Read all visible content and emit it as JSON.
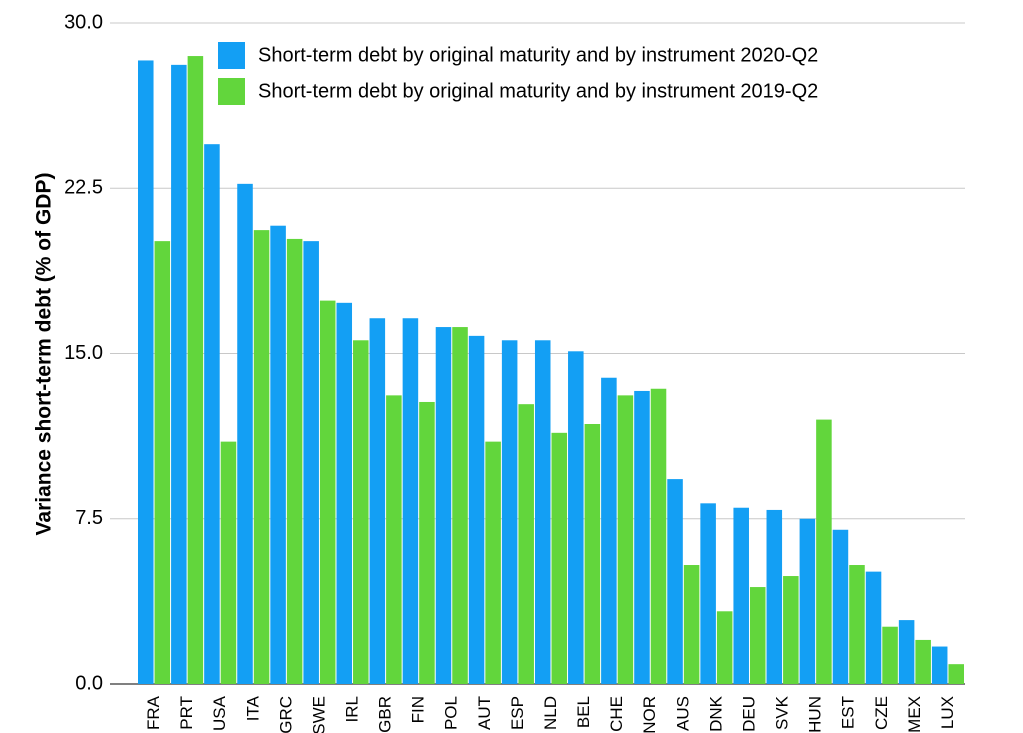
{
  "chart_data": {
    "type": "bar",
    "y_label": "Variance short-term debt (% of GDP)",
    "categories": [
      "FRA",
      "PRT",
      "USA",
      "ITA",
      "GRC",
      "SWE",
      "IRL",
      "GBR",
      "FIN",
      "POL",
      "AUT",
      "ESP",
      "NLD",
      "BEL",
      "CHE",
      "NOR",
      "AUS",
      "DNK",
      "DEU",
      "SVK",
      "HUN",
      "EST",
      "CZE",
      "MEX",
      "LUX"
    ],
    "series": [
      {
        "name": "Short-term debt by original maturity and by instrument 2020-Q2",
        "color": "#139ff4",
        "values": [
          28.3,
          28.1,
          24.5,
          22.7,
          20.8,
          20.1,
          17.3,
          16.6,
          16.6,
          16.2,
          15.8,
          15.6,
          15.6,
          15.1,
          13.9,
          13.3,
          9.3,
          8.2,
          8.0,
          7.9,
          7.5,
          7.0,
          5.1,
          2.9,
          1.7
        ]
      },
      {
        "name": "Short-term debt by original maturity and by instrument 2019-Q2",
        "color": "#62d63c",
        "values": [
          20.1,
          28.5,
          11.0,
          20.6,
          20.2,
          17.4,
          15.6,
          13.1,
          12.8,
          16.2,
          11.0,
          12.7,
          11.4,
          11.8,
          13.1,
          13.4,
          5.4,
          3.3,
          4.4,
          4.9,
          12.0,
          5.4,
          2.6,
          2.0,
          0.9
        ]
      }
    ],
    "ylim": [
      0,
      30
    ],
    "yticks": [
      {
        "value": 0,
        "label": "0.0"
      },
      7.5,
      {
        "value": 15,
        "label": "15.0"
      },
      22.5,
      {
        "value": 30,
        "label": "30.0"
      }
    ],
    "grid": true,
    "legend": "top-right"
  }
}
